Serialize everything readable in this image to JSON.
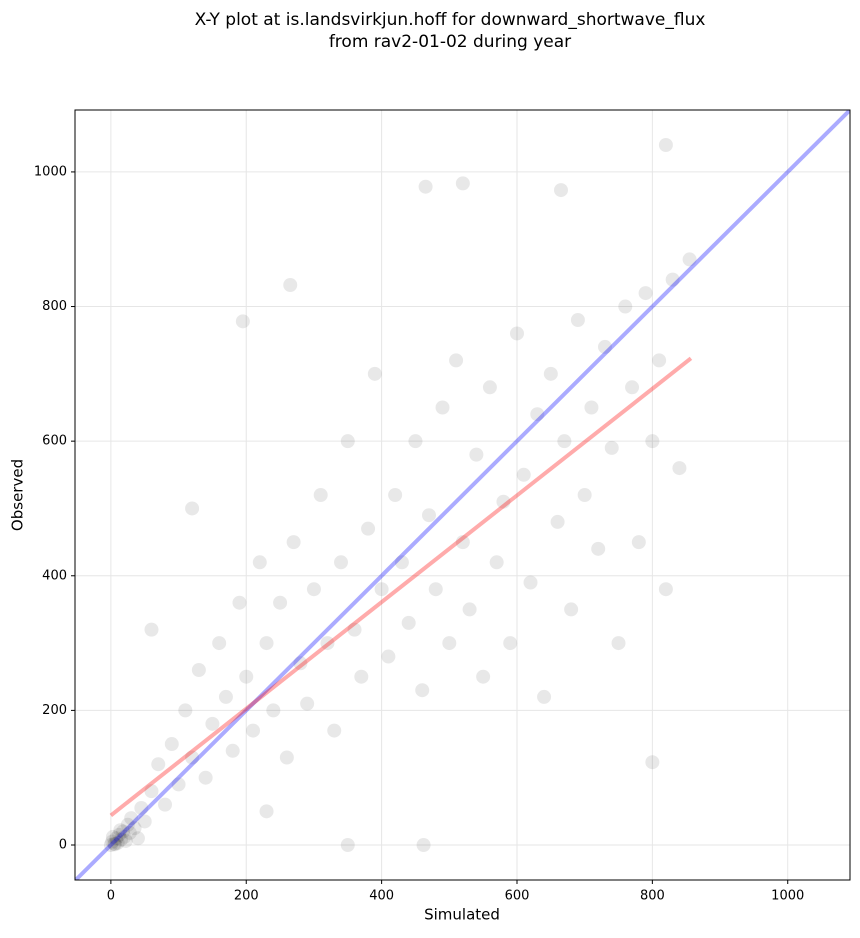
{
  "chart_data": {
    "type": "scatter",
    "title": [
      "X-Y plot at is.landsvirkjun.hoff for downward_shortwave_flux",
      "from rav2-01-02 during year"
    ],
    "xlabel": "Simulated",
    "ylabel": "Observed",
    "xlim": [
      -53,
      1092
    ],
    "ylim": [
      -52,
      1092
    ],
    "xticks": [
      0,
      200,
      400,
      600,
      800,
      1000
    ],
    "yticks": [
      0,
      200,
      400,
      600,
      800,
      1000
    ],
    "grid": true,
    "point_alpha": 0.09,
    "series": [
      {
        "color": "#000000",
        "x": [
          0,
          2,
          5,
          8,
          10,
          12,
          15,
          18,
          20,
          25,
          28,
          30,
          35,
          40,
          45,
          50,
          3,
          6,
          14,
          22,
          60,
          70,
          80,
          90,
          100,
          110,
          120,
          130,
          140,
          150,
          160,
          170,
          180,
          190,
          200,
          210,
          220,
          230,
          240,
          250,
          260,
          270,
          280,
          290,
          300,
          310,
          320,
          330,
          340,
          350,
          360,
          370,
          380,
          390,
          400,
          410,
          420,
          430,
          440,
          450,
          460,
          470,
          480,
          490,
          500,
          510,
          520,
          530,
          540,
          550,
          560,
          570,
          580,
          590,
          600,
          610,
          620,
          630,
          640,
          650,
          660,
          670,
          680,
          690,
          700,
          710,
          720,
          730,
          740,
          750,
          760,
          770,
          780,
          790,
          800,
          810,
          820,
          830,
          840,
          855,
          465,
          520,
          665,
          820,
          350,
          462,
          195,
          265,
          800,
          230,
          120,
          60
        ],
        "values": [
          0,
          5,
          2,
          10,
          3,
          15,
          8,
          20,
          12,
          30,
          18,
          40,
          25,
          10,
          55,
          35,
          12,
          1,
          22,
          6,
          80,
          120,
          60,
          150,
          90,
          200,
          130,
          260,
          100,
          180,
          300,
          220,
          140,
          360,
          250,
          170,
          420,
          300,
          200,
          360,
          130,
          450,
          270,
          210,
          380,
          520,
          300,
          170,
          420,
          600,
          320,
          250,
          470,
          700,
          380,
          280,
          520,
          420,
          330,
          600,
          230,
          490,
          380,
          650,
          300,
          720,
          450,
          350,
          580,
          250,
          680,
          420,
          510,
          300,
          760,
          550,
          390,
          640,
          220,
          700,
          480,
          600,
          350,
          780,
          520,
          650,
          440,
          740,
          590,
          300,
          800,
          680,
          450,
          820,
          600,
          720,
          380,
          840,
          560,
          870,
          978,
          983,
          973,
          1040,
          0,
          0,
          778,
          832,
          123,
          50,
          500,
          320
        ]
      }
    ],
    "lines": [
      {
        "color": "#0000ff",
        "x": [
          -53,
          1092
        ],
        "values": [
          -53,
          1092
        ]
      },
      {
        "color": "#ff0000",
        "x": [
          0,
          857
        ],
        "values": [
          44,
          723
        ]
      }
    ]
  }
}
